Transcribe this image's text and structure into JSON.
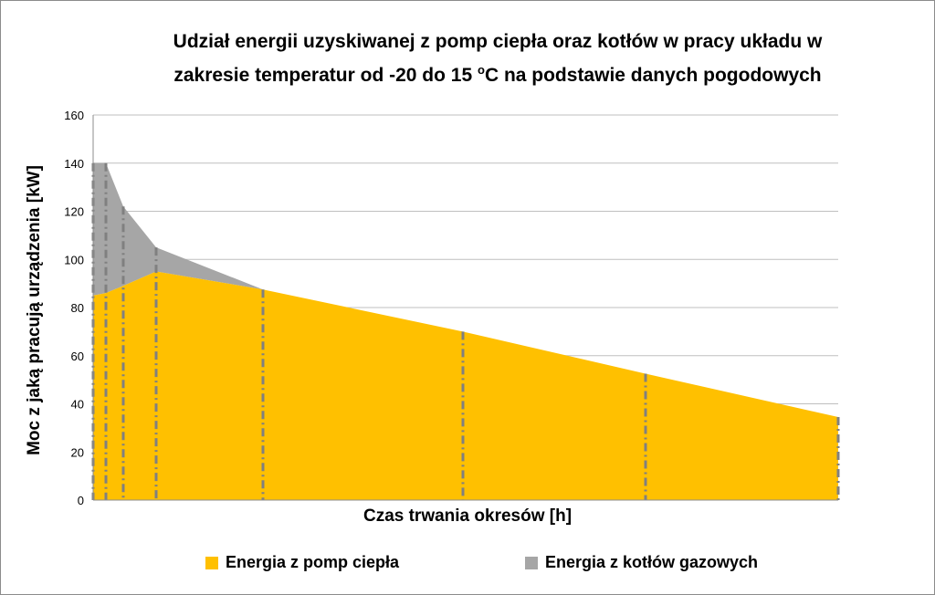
{
  "chart_data": {
    "type": "area",
    "title_line1": "Udział energii uzyskiwanej z pomp ciepła oraz kotłów w pracy układu w",
    "title_line2_a": "zakresie temperatur od -20 do 15 ",
    "title_line2_sup": "o",
    "title_line2_b": "C na podstawie danych pogodowych",
    "xlabel": "Czas trwania okresów [h]",
    "ylabel": "Moc z jaką pracują urządzenia [kW]",
    "ylim": [
      0,
      160
    ],
    "yticks": [
      0,
      20,
      40,
      60,
      80,
      100,
      120,
      140,
      160
    ],
    "grid": true,
    "legend_position": "bottom",
    "colors": {
      "pump": "#FFC000",
      "boiler": "#A6A6A6",
      "divider": "#808080",
      "grid": "#BFBFBF"
    },
    "x": [
      0,
      14,
      33,
      69,
      186,
      405,
      605,
      816
    ],
    "series": [
      {
        "name": "Energia z pomp ciepła",
        "values": [
          85,
          86,
          89,
          95,
          87.5,
          70,
          52.5,
          34.5
        ]
      },
      {
        "name": "Energia z kotłów gazowych",
        "values": [
          55,
          54,
          33,
          10,
          0,
          0,
          0,
          0
        ]
      }
    ]
  }
}
